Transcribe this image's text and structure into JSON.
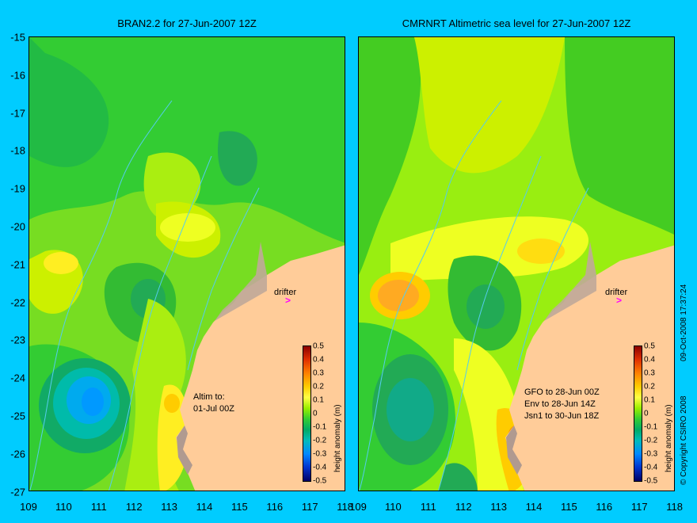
{
  "panels": [
    {
      "title": "BRAN2.2 for 27-Jun-2007 12Z",
      "drifter_label": "drifter",
      "annotation": "Altim to:\n01-Jul 00Z"
    },
    {
      "title": "CMRNRT Altimetric sea level  for 27-Jun-2007 12Z",
      "drifter_label": "drifter",
      "annotation": "GFO to 28-Jun 00Z\nEnv to 28-Jun 14Z\nJsn1 to 30-Jun 18Z"
    }
  ],
  "axes": {
    "y_ticks": [
      "-15",
      "-16",
      "-17",
      "-18",
      "-19",
      "-20",
      "-21",
      "-22",
      "-23",
      "-24",
      "-25",
      "-26",
      "-27"
    ],
    "x_ticks": [
      "109",
      "110",
      "111",
      "112",
      "113",
      "114",
      "115",
      "116",
      "117",
      "118"
    ]
  },
  "colorbar": {
    "ticks": [
      "0.5",
      "0.4",
      "0.3",
      "0.2",
      "0.1",
      "0",
      "-0.1",
      "-0.2",
      "-0.3",
      "-0.4",
      "-0.5"
    ],
    "title": "height anomaly (m)"
  },
  "footer": {
    "timestamp": "09-Oct-2008 17:37:24",
    "copyright": "© Copyright CSIRO 2008"
  },
  "colors": {
    "background": "#00ccff",
    "land": "#ffcc99",
    "drifter": "#ff00ff"
  }
}
